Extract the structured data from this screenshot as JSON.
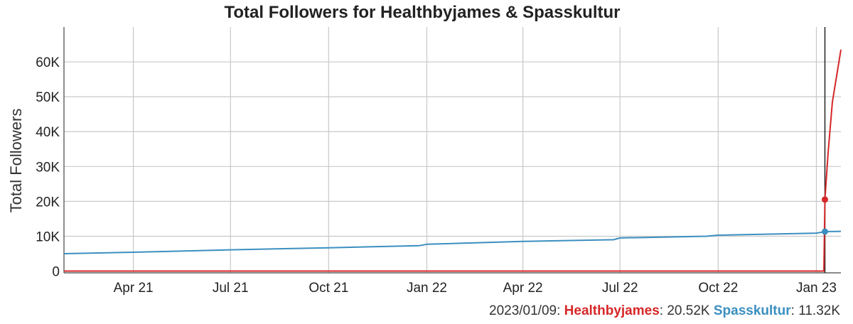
{
  "chart_data": {
    "type": "line",
    "title": "Total Followers for Healthbyjames & Spasskultur",
    "xlabel": "",
    "ylabel": "Total Followers",
    "x_ticks": [
      "Apr 21",
      "Jul 21",
      "Oct 21",
      "Jan 22",
      "Apr 22",
      "Jul 22",
      "Oct 22",
      "Jan 23"
    ],
    "x_tick_dates": [
      "2021-04-01",
      "2021-07-01",
      "2021-10-01",
      "2022-01-01",
      "2022-04-01",
      "2022-07-01",
      "2022-10-01",
      "2023-01-01"
    ],
    "xlim": [
      "2021-01-26",
      "2023-01-24"
    ],
    "y_ticks": [
      0,
      10000,
      20000,
      30000,
      40000,
      50000,
      60000
    ],
    "y_tick_labels": [
      "0",
      "10K",
      "20K",
      "30K",
      "40K",
      "50K",
      "60K"
    ],
    "ylim": [
      -500,
      70000
    ],
    "grid": true,
    "series": [
      {
        "name": "Healthbyjames",
        "color": "#d62728",
        "points": [
          [
            "2021-01-26",
            0
          ],
          [
            "2022-06-01",
            0
          ],
          [
            "2023-01-07",
            0
          ],
          [
            "2023-01-08",
            0
          ],
          [
            "2023-01-09",
            20520
          ],
          [
            "2023-01-12",
            34000
          ],
          [
            "2023-01-16",
            48500
          ],
          [
            "2023-01-20",
            56000
          ],
          [
            "2023-01-24",
            63500
          ]
        ]
      },
      {
        "name": "Spasskultur",
        "color": "#3b8fc0",
        "points": [
          [
            "2021-01-26",
            5000
          ],
          [
            "2021-04-01",
            5400
          ],
          [
            "2021-07-01",
            6100
          ],
          [
            "2021-10-01",
            6700
          ],
          [
            "2021-12-25",
            7300
          ],
          [
            "2022-01-01",
            7700
          ],
          [
            "2022-04-01",
            8500
          ],
          [
            "2022-06-25",
            9000
          ],
          [
            "2022-07-01",
            9500
          ],
          [
            "2022-09-20",
            10000
          ],
          [
            "2022-10-01",
            10300
          ],
          [
            "2023-01-01",
            10900
          ],
          [
            "2023-01-09",
            11320
          ],
          [
            "2023-01-24",
            11400
          ]
        ]
      }
    ],
    "highlight_date": "2023-01-09",
    "markers": [
      {
        "series": "Healthbyjames",
        "date": "2023-01-09",
        "value": 20520
      },
      {
        "series": "Spasskultur",
        "date": "2023-01-09",
        "value": 11320
      }
    ]
  },
  "status_line": {
    "date": "2023/01/09",
    "sep1": ": ",
    "name1": "Healthbyjames",
    "sep2": ": ",
    "value1": "20.52K",
    "gap": " ",
    "name2": "Spasskultur",
    "sep3": ": ",
    "value2": "11.32K"
  },
  "colors": {
    "healthbyjames": "#d62728",
    "spasskultur": "#3b8fc0",
    "grid": "#c8c8c8",
    "text": "#222222"
  }
}
